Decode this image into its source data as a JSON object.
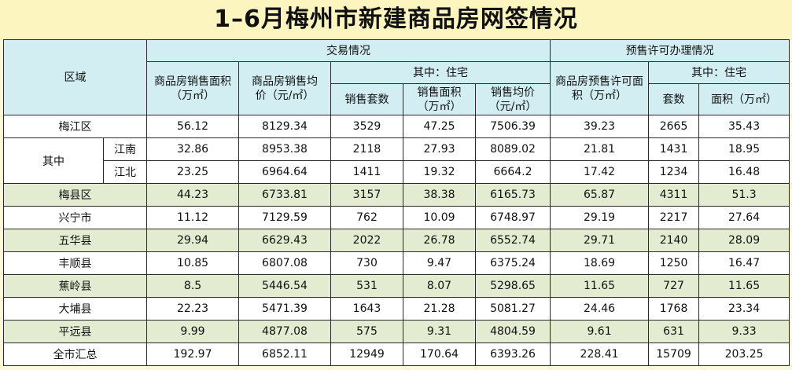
{
  "title": "1–6月梅州市新建商品房网签情况",
  "headers": {
    "region": "区域",
    "transaction": "交易情况",
    "presale": "预售许可办理情况",
    "sales_area": "商品房销售面积（万㎡）",
    "avg_price": "商品房销售均价（元/㎡）",
    "residential_of_which": "其中：住宅",
    "sales_units": "销售套数",
    "res_sales_area": "销售面积（万㎡）",
    "res_avg_price": "销售均价（元/㎡）",
    "presale_area": "商品房预售许可面积（万㎡）",
    "presale_residential_of_which": "其中：住宅",
    "presale_units": "套数",
    "presale_res_area": "面积（万㎡）"
  },
  "group_label": "其中",
  "rows": [
    {
      "name": "梅江区",
      "values": [
        "56.12",
        "8129.34",
        "3529",
        "47.25",
        "7506.39",
        "39.23",
        "2665",
        "35.43"
      ]
    },
    {
      "name": "江南",
      "values": [
        "32.86",
        "8953.38",
        "2118",
        "27.93",
        "8089.02",
        "21.81",
        "1431",
        "18.95"
      ]
    },
    {
      "name": "江北",
      "values": [
        "23.25",
        "6964.64",
        "1411",
        "19.32",
        "6664.2",
        "17.42",
        "1234",
        "16.48"
      ]
    },
    {
      "name": "梅县区",
      "values": [
        "44.23",
        "6733.81",
        "3157",
        "38.38",
        "6165.73",
        "65.87",
        "4311",
        "51.3"
      ]
    },
    {
      "name": "兴宁市",
      "values": [
        "11.12",
        "7129.59",
        "762",
        "10.09",
        "6748.97",
        "29.19",
        "2217",
        "27.64"
      ]
    },
    {
      "name": "五华县",
      "values": [
        "29.94",
        "6629.43",
        "2022",
        "26.78",
        "6552.74",
        "29.71",
        "2140",
        "28.09"
      ]
    },
    {
      "name": "丰顺县",
      "values": [
        "10.85",
        "6807.08",
        "730",
        "9.47",
        "6375.24",
        "18.69",
        "1250",
        "16.47"
      ]
    },
    {
      "name": "蕉岭县",
      "values": [
        "8.5",
        "5446.54",
        "531",
        "8.07",
        "5298.65",
        "11.65",
        "727",
        "11.65"
      ]
    },
    {
      "name": "大埔县",
      "values": [
        "22.23",
        "5471.39",
        "1643",
        "21.28",
        "5081.27",
        "24.46",
        "1768",
        "23.34"
      ]
    },
    {
      "name": "平远县",
      "values": [
        "9.99",
        "4877.08",
        "575",
        "9.31",
        "4804.59",
        "9.61",
        "631",
        "9.33"
      ]
    },
    {
      "name": "全市汇总",
      "values": [
        "192.97",
        "6852.11",
        "12949",
        "170.64",
        "6393.26",
        "228.41",
        "15709",
        "203.25"
      ]
    }
  ]
}
